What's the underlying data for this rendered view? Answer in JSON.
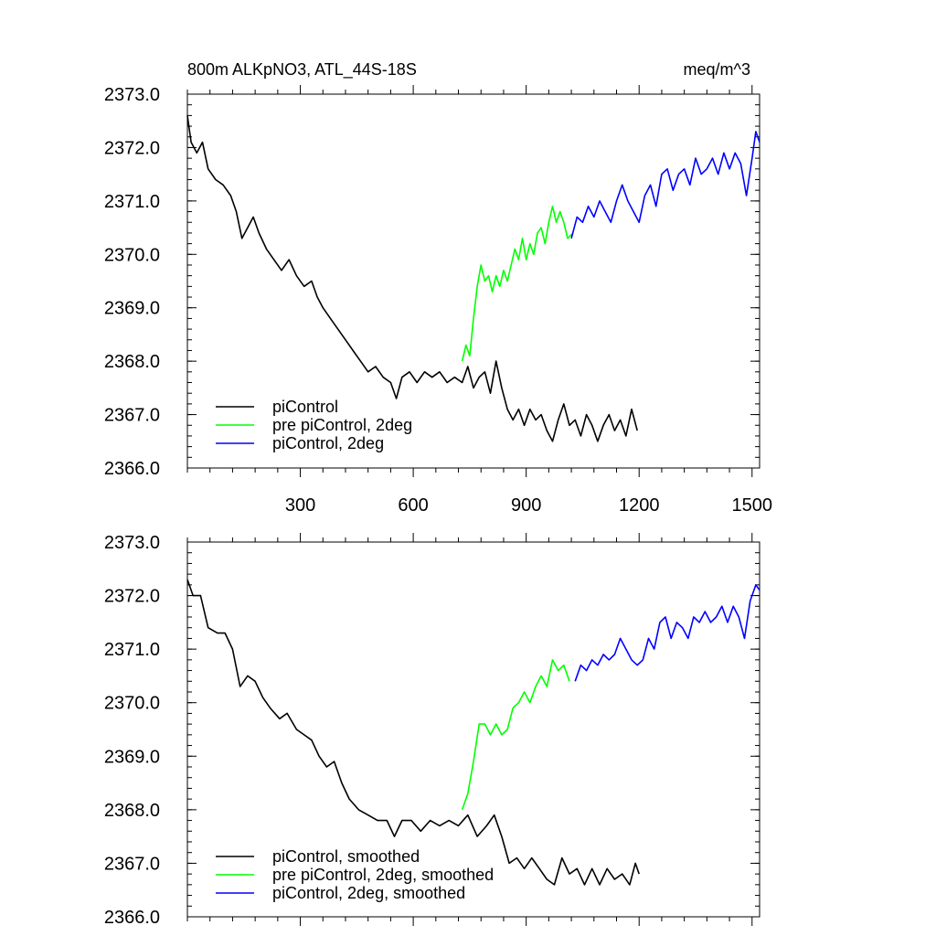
{
  "chart_data": [
    {
      "type": "line",
      "title": "800m ALKpNO3, ATL_44S-18S",
      "units": "meq/m^3",
      "xlabel": "",
      "ylabel": "",
      "xlim": [
        0,
        1520
      ],
      "ylim": [
        2366.0,
        2373.0
      ],
      "x_ticks": [
        "300",
        "600",
        "900",
        "1200",
        "1500"
      ],
      "y_ticks": [
        "2366.0",
        "2367.0",
        "2368.0",
        "2369.0",
        "2370.0",
        "2371.0",
        "2372.0",
        "2373.0"
      ],
      "grid": false,
      "legend_position": "bottom-left",
      "series": [
        {
          "name": "piControl",
          "color": "#000000",
          "points": [
            [
              0,
              2372.6
            ],
            [
              10,
              2372.1
            ],
            [
              25,
              2371.9
            ],
            [
              40,
              2372.1
            ],
            [
              55,
              2371.6
            ],
            [
              75,
              2371.4
            ],
            [
              95,
              2371.3
            ],
            [
              115,
              2371.1
            ],
            [
              130,
              2370.8
            ],
            [
              145,
              2370.3
            ],
            [
              160,
              2370.5
            ],
            [
              175,
              2370.7
            ],
            [
              190,
              2370.4
            ],
            [
              210,
              2370.1
            ],
            [
              230,
              2369.9
            ],
            [
              250,
              2369.7
            ],
            [
              270,
              2369.9
            ],
            [
              290,
              2369.6
            ],
            [
              310,
              2369.4
            ],
            [
              330,
              2369.5
            ],
            [
              345,
              2369.2
            ],
            [
              360,
              2369.0
            ],
            [
              380,
              2368.8
            ],
            [
              400,
              2368.6
            ],
            [
              420,
              2368.4
            ],
            [
              440,
              2368.2
            ],
            [
              460,
              2368.0
            ],
            [
              480,
              2367.8
            ],
            [
              500,
              2367.9
            ],
            [
              520,
              2367.7
            ],
            [
              540,
              2367.6
            ],
            [
              555,
              2367.3
            ],
            [
              570,
              2367.7
            ],
            [
              590,
              2367.8
            ],
            [
              610,
              2367.6
            ],
            [
              630,
              2367.8
            ],
            [
              650,
              2367.7
            ],
            [
              670,
              2367.8
            ],
            [
              690,
              2367.6
            ],
            [
              710,
              2367.7
            ],
            [
              730,
              2367.6
            ],
            [
              745,
              2367.9
            ],
            [
              760,
              2367.5
            ],
            [
              775,
              2367.7
            ],
            [
              790,
              2367.8
            ],
            [
              805,
              2367.4
            ],
            [
              820,
              2368.0
            ],
            [
              835,
              2367.5
            ],
            [
              850,
              2367.1
            ],
            [
              865,
              2366.9
            ],
            [
              880,
              2367.1
            ],
            [
              895,
              2366.8
            ],
            [
              910,
              2367.1
            ],
            [
              925,
              2366.9
            ],
            [
              940,
              2367.0
            ],
            [
              955,
              2366.7
            ],
            [
              970,
              2366.5
            ],
            [
              985,
              2366.9
            ],
            [
              1000,
              2367.2
            ],
            [
              1015,
              2366.8
            ],
            [
              1030,
              2366.9
            ],
            [
              1045,
              2366.6
            ],
            [
              1060,
              2367.0
            ],
            [
              1075,
              2366.8
            ],
            [
              1090,
              2366.5
            ],
            [
              1105,
              2366.8
            ],
            [
              1120,
              2367.0
            ],
            [
              1135,
              2366.7
            ],
            [
              1150,
              2366.9
            ],
            [
              1165,
              2366.6
            ],
            [
              1180,
              2367.1
            ],
            [
              1195,
              2366.7
            ]
          ]
        },
        {
          "name": "pre piControl, 2deg",
          "color": "#00ff00",
          "points": [
            [
              730,
              2368.0
            ],
            [
              740,
              2368.3
            ],
            [
              750,
              2368.1
            ],
            [
              760,
              2368.8
            ],
            [
              770,
              2369.4
            ],
            [
              780,
              2369.8
            ],
            [
              790,
              2369.5
            ],
            [
              800,
              2369.6
            ],
            [
              810,
              2369.3
            ],
            [
              820,
              2369.6
            ],
            [
              830,
              2369.4
            ],
            [
              840,
              2369.7
            ],
            [
              850,
              2369.5
            ],
            [
              860,
              2369.8
            ],
            [
              870,
              2370.1
            ],
            [
              880,
              2369.9
            ],
            [
              890,
              2370.3
            ],
            [
              900,
              2369.9
            ],
            [
              910,
              2370.2
            ],
            [
              920,
              2370.0
            ],
            [
              930,
              2370.4
            ],
            [
              940,
              2370.5
            ],
            [
              950,
              2370.2
            ],
            [
              960,
              2370.6
            ],
            [
              970,
              2370.9
            ],
            [
              980,
              2370.6
            ],
            [
              990,
              2370.8
            ],
            [
              1000,
              2370.6
            ],
            [
              1010,
              2370.3
            ],
            [
              1025,
              2370.4
            ]
          ]
        },
        {
          "name": "piControl, 2deg",
          "color": "#0000ff",
          "points": [
            [
              1020,
              2370.3
            ],
            [
              1035,
              2370.7
            ],
            [
              1050,
              2370.6
            ],
            [
              1065,
              2370.9
            ],
            [
              1080,
              2370.7
            ],
            [
              1095,
              2371.0
            ],
            [
              1110,
              2370.8
            ],
            [
              1125,
              2370.6
            ],
            [
              1140,
              2371.0
            ],
            [
              1155,
              2371.3
            ],
            [
              1170,
              2371.0
            ],
            [
              1185,
              2370.8
            ],
            [
              1200,
              2370.6
            ],
            [
              1215,
              2371.1
            ],
            [
              1230,
              2371.3
            ],
            [
              1245,
              2370.9
            ],
            [
              1260,
              2371.5
            ],
            [
              1275,
              2371.6
            ],
            [
              1290,
              2371.2
            ],
            [
              1305,
              2371.5
            ],
            [
              1320,
              2371.6
            ],
            [
              1335,
              2371.3
            ],
            [
              1350,
              2371.8
            ],
            [
              1365,
              2371.5
            ],
            [
              1380,
              2371.6
            ],
            [
              1395,
              2371.8
            ],
            [
              1410,
              2371.5
            ],
            [
              1425,
              2371.9
            ],
            [
              1440,
              2371.6
            ],
            [
              1455,
              2371.9
            ],
            [
              1470,
              2371.7
            ],
            [
              1485,
              2371.1
            ],
            [
              1500,
              2371.8
            ],
            [
              1510,
              2372.3
            ],
            [
              1520,
              2372.1
            ]
          ]
        }
      ]
    },
    {
      "type": "line",
      "title": "",
      "units": "",
      "xlabel": "",
      "ylabel": "",
      "xlim": [
        0,
        1520
      ],
      "ylim": [
        2366.0,
        2373.0
      ],
      "x_ticks": [],
      "y_ticks": [
        "2366.0",
        "2367.0",
        "2368.0",
        "2369.0",
        "2370.0",
        "2371.0",
        "2372.0",
        "2373.0"
      ],
      "grid": false,
      "legend_position": "bottom-left",
      "series": [
        {
          "name": "piControl, smoothed",
          "color": "#000000",
          "points": [
            [
              0,
              2372.3
            ],
            [
              15,
              2372.0
            ],
            [
              35,
              2372.0
            ],
            [
              55,
              2371.4
            ],
            [
              80,
              2371.3
            ],
            [
              100,
              2371.3
            ],
            [
              120,
              2371.0
            ],
            [
              140,
              2370.3
            ],
            [
              160,
              2370.5
            ],
            [
              180,
              2370.4
            ],
            [
              200,
              2370.1
            ],
            [
              220,
              2369.9
            ],
            [
              245,
              2369.7
            ],
            [
              265,
              2369.8
            ],
            [
              290,
              2369.5
            ],
            [
              310,
              2369.4
            ],
            [
              330,
              2369.3
            ],
            [
              350,
              2369.0
            ],
            [
              370,
              2368.8
            ],
            [
              390,
              2368.9
            ],
            [
              410,
              2368.5
            ],
            [
              430,
              2368.2
            ],
            [
              455,
              2368.0
            ],
            [
              480,
              2367.9
            ],
            [
              505,
              2367.8
            ],
            [
              530,
              2367.8
            ],
            [
              550,
              2367.5
            ],
            [
              570,
              2367.8
            ],
            [
              595,
              2367.8
            ],
            [
              620,
              2367.6
            ],
            [
              645,
              2367.8
            ],
            [
              670,
              2367.7
            ],
            [
              695,
              2367.8
            ],
            [
              720,
              2367.7
            ],
            [
              745,
              2367.9
            ],
            [
              770,
              2367.5
            ],
            [
              795,
              2367.7
            ],
            [
              815,
              2367.9
            ],
            [
              835,
              2367.5
            ],
            [
              855,
              2367.0
            ],
            [
              875,
              2367.1
            ],
            [
              895,
              2366.9
            ],
            [
              915,
              2367.1
            ],
            [
              935,
              2366.9
            ],
            [
              955,
              2366.7
            ],
            [
              975,
              2366.6
            ],
            [
              995,
              2367.1
            ],
            [
              1015,
              2366.8
            ],
            [
              1035,
              2366.9
            ],
            [
              1055,
              2366.6
            ],
            [
              1075,
              2366.9
            ],
            [
              1095,
              2366.6
            ],
            [
              1115,
              2366.9
            ],
            [
              1135,
              2366.7
            ],
            [
              1155,
              2366.8
            ],
            [
              1175,
              2366.6
            ],
            [
              1190,
              2367.0
            ],
            [
              1200,
              2366.8
            ]
          ]
        },
        {
          "name": "pre piControl, 2deg, smoothed",
          "color": "#00ff00",
          "points": [
            [
              730,
              2368.0
            ],
            [
              745,
              2368.3
            ],
            [
              760,
              2368.9
            ],
            [
              775,
              2369.6
            ],
            [
              790,
              2369.6
            ],
            [
              805,
              2369.4
            ],
            [
              820,
              2369.6
            ],
            [
              835,
              2369.4
            ],
            [
              850,
              2369.5
            ],
            [
              865,
              2369.9
            ],
            [
              880,
              2370.0
            ],
            [
              895,
              2370.2
            ],
            [
              910,
              2370.0
            ],
            [
              925,
              2370.3
            ],
            [
              940,
              2370.5
            ],
            [
              955,
              2370.3
            ],
            [
              970,
              2370.8
            ],
            [
              985,
              2370.6
            ],
            [
              1000,
              2370.7
            ],
            [
              1015,
              2370.4
            ]
          ]
        },
        {
          "name": "piControl, 2deg, smoothed",
          "color": "#0000ff",
          "points": [
            [
              1030,
              2370.4
            ],
            [
              1045,
              2370.7
            ],
            [
              1060,
              2370.6
            ],
            [
              1075,
              2370.8
            ],
            [
              1090,
              2370.7
            ],
            [
              1105,
              2370.9
            ],
            [
              1120,
              2370.8
            ],
            [
              1135,
              2370.9
            ],
            [
              1150,
              2371.2
            ],
            [
              1165,
              2371.0
            ],
            [
              1180,
              2370.8
            ],
            [
              1195,
              2370.7
            ],
            [
              1210,
              2370.8
            ],
            [
              1225,
              2371.2
            ],
            [
              1240,
              2371.0
            ],
            [
              1255,
              2371.5
            ],
            [
              1270,
              2371.6
            ],
            [
              1285,
              2371.2
            ],
            [
              1300,
              2371.5
            ],
            [
              1315,
              2371.4
            ],
            [
              1330,
              2371.2
            ],
            [
              1345,
              2371.6
            ],
            [
              1360,
              2371.5
            ],
            [
              1375,
              2371.7
            ],
            [
              1390,
              2371.5
            ],
            [
              1405,
              2371.6
            ],
            [
              1420,
              2371.8
            ],
            [
              1435,
              2371.5
            ],
            [
              1450,
              2371.8
            ],
            [
              1465,
              2371.6
            ],
            [
              1480,
              2371.2
            ],
            [
              1495,
              2371.9
            ],
            [
              1510,
              2372.2
            ],
            [
              1520,
              2372.1
            ]
          ]
        }
      ]
    }
  ]
}
